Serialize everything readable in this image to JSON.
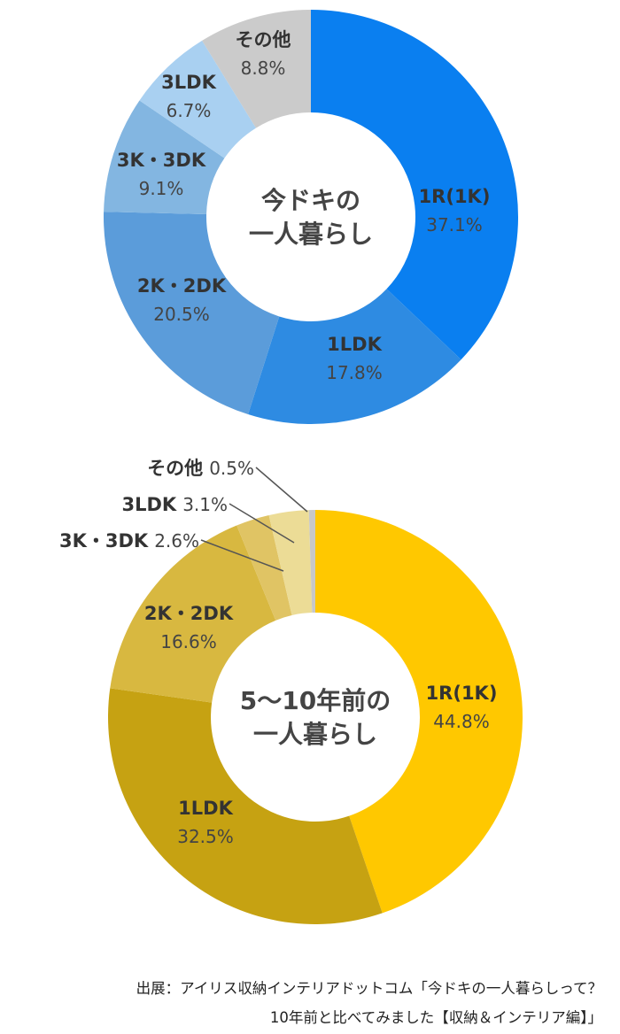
{
  "chart_data": [
    {
      "type": "pie",
      "title": "今ドキの一人暮らし",
      "center_lines": [
        "今ドキの",
        "一人暮らし"
      ],
      "categories": [
        "1R(1K)",
        "1LDK",
        "2K・2DK",
        "3K・3DK",
        "3LDK",
        "その他"
      ],
      "values": [
        37.1,
        17.8,
        20.5,
        9.1,
        6.7,
        8.8
      ],
      "labels_pct": [
        "37.1%",
        "17.8%",
        "20.5%",
        "9.1%",
        "6.7%",
        "8.8%"
      ],
      "colors": [
        "#0A7FF0",
        "#2E8BE2",
        "#5B9CDA",
        "#83B6E1",
        "#A9D0F1",
        "#CBCBCB"
      ]
    },
    {
      "type": "pie",
      "title": "5〜10年前の一人暮らし",
      "center_lines": [
        "5〜10年前の",
        "一人暮らし"
      ],
      "categories": [
        "1R(1K)",
        "1LDK",
        "2K・2DK",
        "3K・3DK",
        "3LDK",
        "その他"
      ],
      "values": [
        44.8,
        32.5,
        16.6,
        2.6,
        3.1,
        0.5
      ],
      "labels_pct": [
        "44.8%",
        "32.5%",
        "16.6%",
        "2.6%",
        "3.1%",
        "0.5%"
      ],
      "colors": [
        "#FFC800",
        "#C6A212",
        "#D8B840",
        "#E0C464",
        "#ECDC96",
        "#C8C8C8"
      ]
    }
  ],
  "source": {
    "line1": "出展：アイリス収納インテリアドットコム「今ドキの一人暮らしって？",
    "line2": "10年前と比べてみました【収納＆インテリア編】」"
  }
}
